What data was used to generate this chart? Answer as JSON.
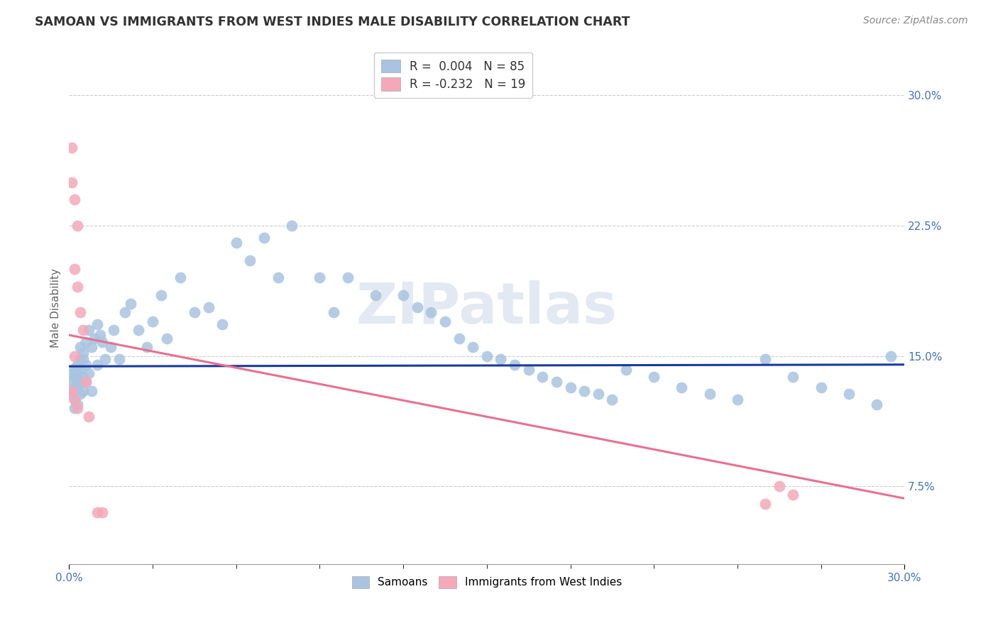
{
  "title": "SAMOAN VS IMMIGRANTS FROM WEST INDIES MALE DISABILITY CORRELATION CHART",
  "source": "Source: ZipAtlas.com",
  "ylabel": "Male Disability",
  "ytick_labels": [
    "7.5%",
    "15.0%",
    "22.5%",
    "30.0%"
  ],
  "ytick_values": [
    0.075,
    0.15,
    0.225,
    0.3
  ],
  "xmin": 0.0,
  "xmax": 0.3,
  "ymin": 0.03,
  "ymax": 0.325,
  "color_samoan": "#a8c4e0",
  "color_westindies": "#f4a8b8",
  "color_samoan_line": "#1a3a9c",
  "color_westindies_line": "#e87090",
  "color_title": "#333333",
  "color_source": "#888888",
  "color_axis_labels": "#4472c4",
  "color_ylabel": "#666666",
  "watermark": "ZIPatlas",
  "samoan_x": [
    0.001,
    0.001,
    0.001,
    0.001,
    0.002,
    0.002,
    0.002,
    0.002,
    0.002,
    0.003,
    0.003,
    0.003,
    0.003,
    0.004,
    0.004,
    0.004,
    0.004,
    0.004,
    0.005,
    0.005,
    0.005,
    0.005,
    0.006,
    0.006,
    0.006,
    0.007,
    0.007,
    0.008,
    0.008,
    0.009,
    0.01,
    0.01,
    0.011,
    0.012,
    0.013,
    0.015,
    0.016,
    0.018,
    0.02,
    0.022,
    0.025,
    0.028,
    0.03,
    0.033,
    0.035,
    0.04,
    0.045,
    0.05,
    0.055,
    0.06,
    0.065,
    0.07,
    0.075,
    0.08,
    0.09,
    0.095,
    0.1,
    0.11,
    0.12,
    0.125,
    0.13,
    0.135,
    0.14,
    0.145,
    0.15,
    0.155,
    0.16,
    0.165,
    0.17,
    0.175,
    0.18,
    0.185,
    0.19,
    0.195,
    0.2,
    0.21,
    0.22,
    0.23,
    0.24,
    0.25,
    0.26,
    0.27,
    0.28,
    0.29,
    0.295
  ],
  "samoan_y": [
    0.135,
    0.14,
    0.13,
    0.128,
    0.138,
    0.143,
    0.132,
    0.125,
    0.12,
    0.145,
    0.14,
    0.133,
    0.122,
    0.155,
    0.148,
    0.142,
    0.135,
    0.128,
    0.152,
    0.148,
    0.138,
    0.13,
    0.158,
    0.145,
    0.135,
    0.165,
    0.14,
    0.155,
    0.13,
    0.16,
    0.168,
    0.145,
    0.162,
    0.158,
    0.148,
    0.155,
    0.165,
    0.148,
    0.175,
    0.18,
    0.165,
    0.155,
    0.17,
    0.185,
    0.16,
    0.195,
    0.175,
    0.178,
    0.168,
    0.215,
    0.205,
    0.218,
    0.195,
    0.225,
    0.195,
    0.175,
    0.195,
    0.185,
    0.185,
    0.178,
    0.175,
    0.17,
    0.16,
    0.155,
    0.15,
    0.148,
    0.145,
    0.142,
    0.138,
    0.135,
    0.132,
    0.13,
    0.128,
    0.125,
    0.142,
    0.138,
    0.132,
    0.128,
    0.125,
    0.148,
    0.138,
    0.132,
    0.128,
    0.122,
    0.15
  ],
  "westindies_x": [
    0.001,
    0.001,
    0.001,
    0.002,
    0.002,
    0.002,
    0.002,
    0.003,
    0.003,
    0.003,
    0.004,
    0.005,
    0.006,
    0.007,
    0.01,
    0.012,
    0.25,
    0.255,
    0.26
  ],
  "westindies_y": [
    0.27,
    0.25,
    0.13,
    0.24,
    0.2,
    0.15,
    0.125,
    0.225,
    0.19,
    0.12,
    0.175,
    0.165,
    0.135,
    0.115,
    0.06,
    0.06,
    0.065,
    0.075,
    0.07
  ],
  "samoan_trend_x": [
    0.0,
    0.3
  ],
  "samoan_trend_y": [
    0.144,
    0.145
  ],
  "westindies_trend_x": [
    0.0,
    0.3
  ],
  "westindies_trend_y": [
    0.162,
    0.068
  ]
}
